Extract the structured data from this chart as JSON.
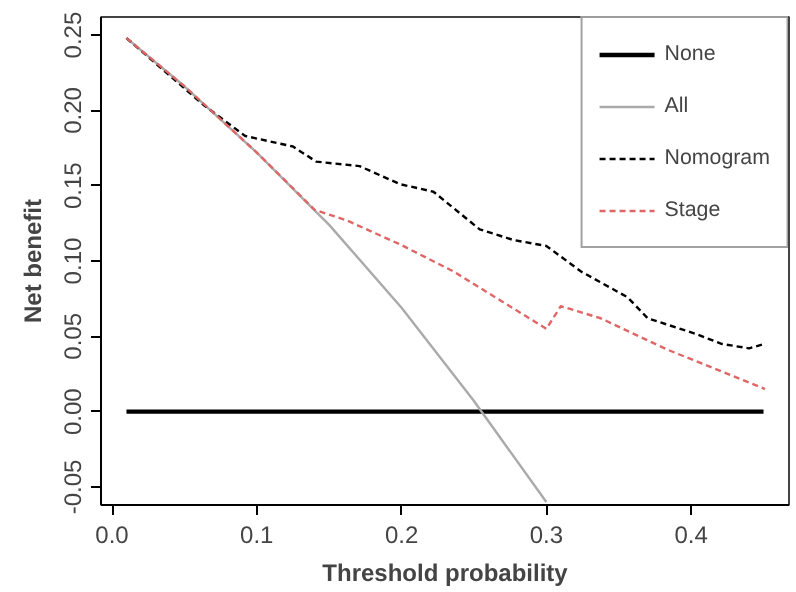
{
  "chart_data": {
    "type": "line",
    "xlabel": "Threshold probability",
    "ylabel": "Net benefit",
    "xlim": [
      -0.0076,
      0.4676
    ],
    "ylim": [
      -0.062,
      0.262
    ],
    "xticks": [
      {
        "value": 0,
        "label": "0.0"
      },
      {
        "value": 0.1,
        "label": "0.1"
      },
      {
        "value": 0.2,
        "label": "0.2"
      },
      {
        "value": 0.3,
        "label": "0.3"
      },
      {
        "value": 0.4,
        "label": "0.4"
      }
    ],
    "yticks": [
      {
        "value": -0.05,
        "label": "-0.05"
      },
      {
        "value": 0,
        "label": "0.00"
      },
      {
        "value": 0.05,
        "label": "0.05"
      },
      {
        "value": 0.1,
        "label": "0.10"
      },
      {
        "value": 0.15,
        "label": "0.15"
      },
      {
        "value": 0.2,
        "label": "0.20"
      },
      {
        "value": 0.25,
        "label": "0.25"
      }
    ],
    "grid": false,
    "legend": "top right",
    "series": [
      {
        "name": "None",
        "color": "#000000",
        "line_style": "solid",
        "x": [
          0.01,
          0.45
        ],
        "values": [
          0,
          0
        ]
      },
      {
        "name": "All",
        "color": "#aaaaaa",
        "line_style": "solid",
        "x": [
          0.01,
          0.05,
          0.1,
          0.15,
          0.2,
          0.25,
          0.3
        ],
        "values": [
          0.248,
          0.216,
          0.172,
          0.124,
          0.069,
          0.007,
          -0.06
        ]
      },
      {
        "name": "Nomogram",
        "color": "#000000",
        "line_style": "dashed",
        "x": [
          0.01,
          0.064,
          0.092,
          0.125,
          0.141,
          0.171,
          0.199,
          0.222,
          0.254,
          0.277,
          0.3,
          0.324,
          0.356,
          0.37,
          0.402,
          0.421,
          0.44,
          0.451
        ],
        "values": [
          0.248,
          0.203,
          0.183,
          0.176,
          0.166,
          0.163,
          0.151,
          0.146,
          0.121,
          0.114,
          0.11,
          0.093,
          0.076,
          0.062,
          0.052,
          0.045,
          0.042,
          0.045
        ]
      },
      {
        "name": "Stage",
        "color": "#e06666",
        "line_style": "dashed",
        "x": [
          0.01,
          0.05,
          0.1,
          0.14,
          0.162,
          0.199,
          0.236,
          0.3,
          0.31,
          0.3375,
          0.384,
          0.451
        ],
        "values": [
          0.248,
          0.216,
          0.172,
          0.134,
          0.127,
          0.111,
          0.093,
          0.055,
          0.07,
          0.062,
          0.041,
          0.015
        ]
      }
    ]
  }
}
